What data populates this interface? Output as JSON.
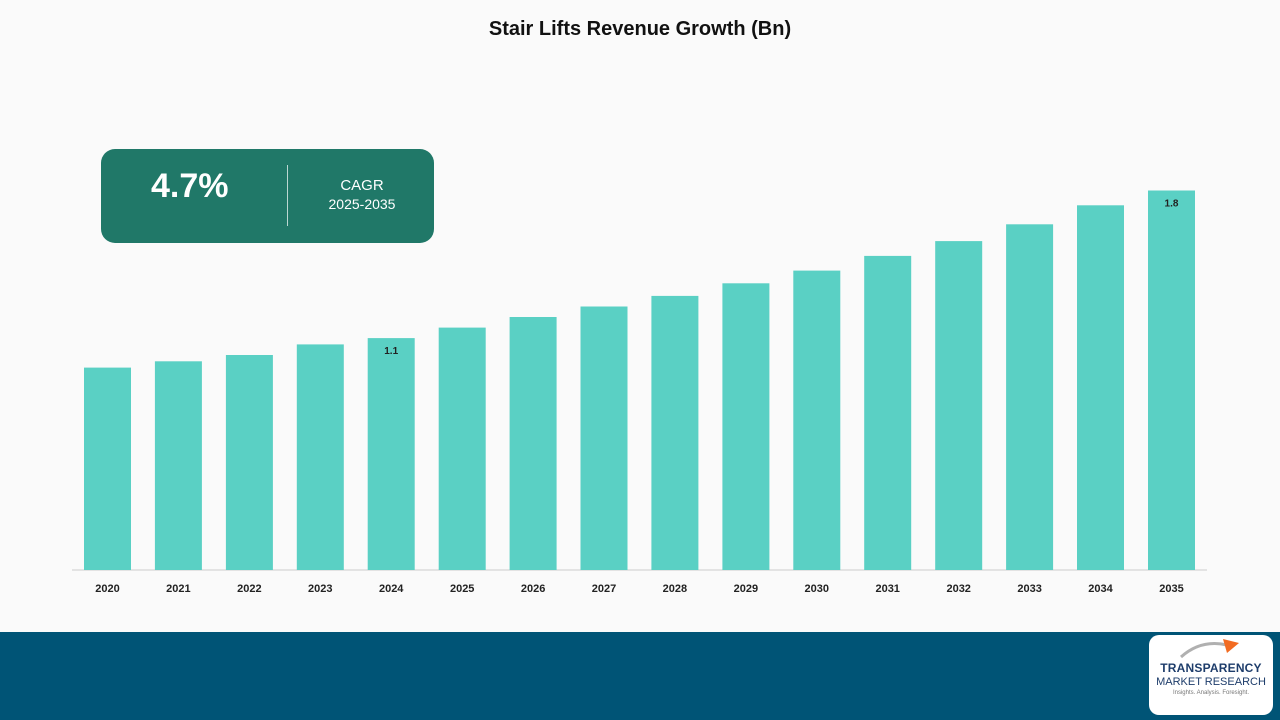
{
  "chart_data": {
    "type": "bar",
    "title": "Stair Lifts Revenue Growth (Bn)",
    "xlabel": "",
    "ylabel": "",
    "categories": [
      "2020",
      "2021",
      "2022",
      "2023",
      "2024",
      "2025",
      "2026",
      "2027",
      "2028",
      "2029",
      "2030",
      "2031",
      "2032",
      "2033",
      "2034",
      "2035"
    ],
    "series": [
      {
        "values": [
          0.96,
          0.99,
          1.02,
          1.07,
          1.1,
          1.15,
          1.2,
          1.25,
          1.3,
          1.36,
          1.42,
          1.49,
          1.56,
          1.64,
          1.73,
          1.8
        ],
        "data_labels": {
          "4": "1.1",
          "15": "1.8"
        }
      }
    ],
    "ylim": [
      0,
      1.85
    ],
    "grid": false,
    "legend": "none",
    "colors": {
      "bar": "#5ad0c4",
      "label": "#222222",
      "axis": "#cccccc"
    }
  },
  "cagr": {
    "value": "4.7%",
    "label": "CAGR",
    "period": "2025-2035"
  },
  "footer": {
    "logo_line1": "TRANSPARENCY",
    "logo_line2": "MARKET RESEARCH",
    "logo_line3": "Insights. Analysis. Foresight.",
    "band_color": "#005476"
  }
}
